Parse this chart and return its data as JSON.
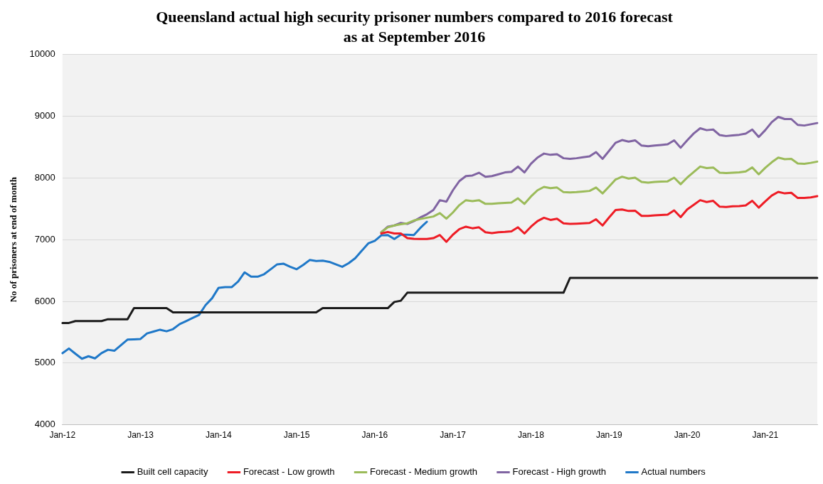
{
  "chart_data": {
    "type": "line",
    "title": "Queensland actual high security prisoner numbers compared to 2016 forecast",
    "subtitle": "as at September 2016",
    "ylabel": "No of prisoners at end of month",
    "categories": [
      "Jan-12",
      null,
      null,
      null,
      null,
      null,
      null,
      null,
      null,
      null,
      null,
      null,
      "Jan-13",
      null,
      null,
      null,
      null,
      null,
      null,
      null,
      null,
      null,
      null,
      null,
      "Jan-14",
      null,
      null,
      null,
      null,
      null,
      null,
      null,
      null,
      null,
      null,
      null,
      "Jan-15",
      null,
      null,
      null,
      null,
      null,
      null,
      null,
      null,
      null,
      null,
      null,
      "Jan-16",
      null,
      null,
      null,
      null,
      null,
      null,
      null,
      null,
      null,
      null,
      null,
      "Jan-17",
      null,
      null,
      null,
      null,
      null,
      null,
      null,
      null,
      null,
      null,
      null,
      "Jan-18",
      null,
      null,
      null,
      null,
      null,
      null,
      null,
      null,
      null,
      null,
      null,
      "Jan-19",
      null,
      null,
      null,
      null,
      null,
      null,
      null,
      null,
      null,
      null,
      null,
      "Jan-20",
      null,
      null,
      null,
      null,
      null,
      null,
      null,
      null,
      null,
      null,
      null,
      "Jan-21",
      null,
      null,
      null,
      null,
      null,
      null,
      null,
      null
    ],
    "series": [
      {
        "name": "Built cell capacity",
        "color": "#1a1a1a",
        "values": [
          5650,
          5650,
          5680,
          5680,
          5680,
          5680,
          5680,
          5710,
          5710,
          5710,
          5710,
          5890,
          5890,
          5890,
          5890,
          5890,
          5890,
          5820,
          5820,
          5820,
          5820,
          5820,
          5820,
          5820,
          5820,
          5820,
          5820,
          5820,
          5820,
          5820,
          5820,
          5820,
          5820,
          5820,
          5820,
          5820,
          5820,
          5820,
          5820,
          5820,
          5890,
          5890,
          5890,
          5890,
          5890,
          5890,
          5890,
          5890,
          5890,
          5890,
          5890,
          5990,
          6010,
          6140,
          6140,
          6140,
          6140,
          6140,
          6140,
          6140,
          6140,
          6140,
          6140,
          6140,
          6140,
          6140,
          6140,
          6140,
          6140,
          6140,
          6140,
          6140,
          6140,
          6140,
          6140,
          6140,
          6140,
          6140,
          6380,
          6380,
          6380,
          6380,
          6380,
          6380,
          6380,
          6380,
          6380,
          6380,
          6380,
          6380,
          6380,
          6380,
          6380,
          6380,
          6380,
          6380,
          6380,
          6380,
          6380,
          6380,
          6380,
          6380,
          6380,
          6380,
          6380,
          6380,
          6380,
          6380,
          6380,
          6380,
          6380,
          6380,
          6380,
          6380,
          6380,
          6380,
          6380
        ]
      },
      {
        "name": "Forecast - Low growth",
        "color": "#ee1c25",
        "values": [
          null,
          null,
          null,
          null,
          null,
          null,
          null,
          null,
          null,
          null,
          null,
          null,
          null,
          null,
          null,
          null,
          null,
          null,
          null,
          null,
          null,
          null,
          null,
          null,
          null,
          null,
          null,
          null,
          null,
          null,
          null,
          null,
          null,
          null,
          null,
          null,
          null,
          null,
          null,
          null,
          null,
          null,
          null,
          null,
          null,
          null,
          null,
          null,
          null,
          7100,
          7125,
          7100,
          7100,
          7025,
          7015,
          7010,
          7010,
          7025,
          7075,
          6965,
          7080,
          7170,
          7210,
          7185,
          7200,
          7120,
          7105,
          7120,
          7125,
          7135,
          7200,
          7100,
          7210,
          7300,
          7355,
          7320,
          7340,
          7265,
          7255,
          7260,
          7265,
          7270,
          7330,
          7230,
          7360,
          7480,
          7490,
          7465,
          7470,
          7385,
          7385,
          7395,
          7400,
          7405,
          7475,
          7365,
          7490,
          7565,
          7640,
          7610,
          7630,
          7535,
          7530,
          7540,
          7545,
          7555,
          7630,
          7520,
          7620,
          7715,
          7775,
          7750,
          7760,
          7675,
          7675,
          7685,
          7705
        ]
      },
      {
        "name": "Forecast - Medium growth",
        "color": "#9bbb59",
        "values": [
          null,
          null,
          null,
          null,
          null,
          null,
          null,
          null,
          null,
          null,
          null,
          null,
          null,
          null,
          null,
          null,
          null,
          null,
          null,
          null,
          null,
          null,
          null,
          null,
          null,
          null,
          null,
          null,
          null,
          null,
          null,
          null,
          null,
          null,
          null,
          null,
          null,
          null,
          null,
          null,
          null,
          null,
          null,
          null,
          null,
          null,
          null,
          null,
          null,
          7120,
          7200,
          7230,
          7250,
          7265,
          7310,
          7335,
          7355,
          7375,
          7430,
          7340,
          7440,
          7560,
          7640,
          7625,
          7640,
          7580,
          7580,
          7590,
          7595,
          7600,
          7670,
          7580,
          7700,
          7800,
          7855,
          7835,
          7845,
          7770,
          7765,
          7770,
          7780,
          7790,
          7845,
          7750,
          7860,
          7975,
          8020,
          7990,
          8005,
          7935,
          7925,
          7935,
          7940,
          7945,
          8005,
          7900,
          8005,
          8095,
          8185,
          8160,
          8170,
          8085,
          8080,
          8085,
          8090,
          8105,
          8170,
          8060,
          8165,
          8255,
          8330,
          8305,
          8310,
          8235,
          8230,
          8245,
          8265
        ]
      },
      {
        "name": "Forecast - High growth",
        "color": "#8064a2",
        "values": [
          null,
          null,
          null,
          null,
          null,
          null,
          null,
          null,
          null,
          null,
          null,
          null,
          null,
          null,
          null,
          null,
          null,
          null,
          null,
          null,
          null,
          null,
          null,
          null,
          null,
          null,
          null,
          null,
          null,
          null,
          null,
          null,
          null,
          null,
          null,
          null,
          null,
          null,
          null,
          null,
          null,
          null,
          null,
          null,
          null,
          null,
          null,
          null,
          null,
          7120,
          7210,
          7230,
          7270,
          7255,
          7300,
          7360,
          7410,
          7480,
          7640,
          7615,
          7800,
          7950,
          8030,
          8040,
          8085,
          8020,
          8030,
          8060,
          8090,
          8100,
          8185,
          8090,
          8230,
          8330,
          8395,
          8375,
          8385,
          8320,
          8310,
          8320,
          8335,
          8350,
          8420,
          8310,
          8440,
          8570,
          8615,
          8590,
          8610,
          8525,
          8515,
          8525,
          8535,
          8545,
          8610,
          8490,
          8610,
          8720,
          8805,
          8775,
          8785,
          8695,
          8680,
          8690,
          8700,
          8720,
          8785,
          8665,
          8775,
          8905,
          8990,
          8955,
          8955,
          8860,
          8850,
          8870,
          8890
        ]
      },
      {
        "name": "Actual numbers",
        "color": "#1f78c8",
        "values": [
          5160,
          5235,
          5150,
          5070,
          5110,
          5075,
          5160,
          5215,
          5200,
          5290,
          5380,
          5385,
          5390,
          5480,
          5510,
          5540,
          5515,
          5550,
          5630,
          5680,
          5730,
          5780,
          5940,
          6050,
          6220,
          6230,
          6230,
          6320,
          6470,
          6400,
          6400,
          6440,
          6520,
          6600,
          6610,
          6560,
          6520,
          6590,
          6670,
          6655,
          6660,
          6640,
          6600,
          6560,
          6620,
          6700,
          6820,
          6940,
          6980,
          7070,
          7075,
          7010,
          7080,
          7080,
          7075,
          7190,
          7290,
          null,
          null,
          null,
          null,
          null,
          null,
          null,
          null,
          null,
          null,
          null,
          null,
          null,
          null,
          null,
          null,
          null,
          null,
          null,
          null,
          null,
          null,
          null,
          null,
          null,
          null,
          null,
          null,
          null,
          null,
          null,
          null,
          null,
          null,
          null,
          null,
          null,
          null,
          null,
          null,
          null,
          null,
          null,
          null,
          null,
          null,
          null,
          null,
          null,
          null,
          null,
          null,
          null,
          null,
          null,
          null,
          null,
          null,
          null,
          null
        ]
      }
    ],
    "ylim": [
      4000,
      10000
    ],
    "yticks": [
      4000,
      5000,
      6000,
      7000,
      8000,
      9000,
      10000
    ],
    "grid": "y",
    "legend": "bottom",
    "marker": "none",
    "line_style": "solid"
  }
}
